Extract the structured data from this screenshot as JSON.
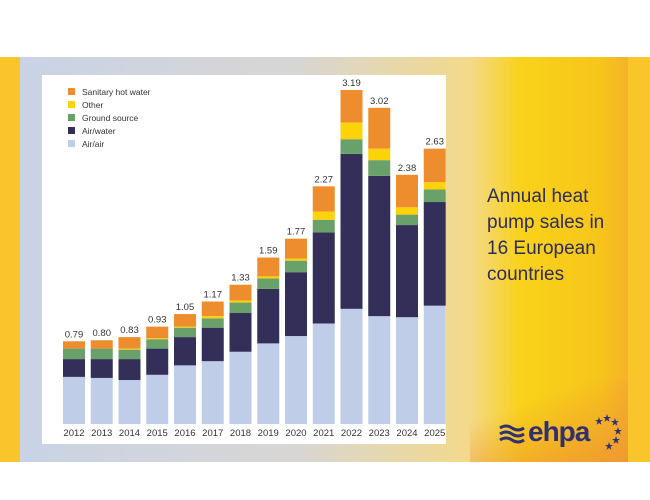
{
  "side_title": "Annual heat pump sales in 16 European countries",
  "logo_text": "ehpa",
  "chart_data": {
    "type": "bar",
    "stacked": true,
    "categories": [
      "2012",
      "2013",
      "2014",
      "2015",
      "2016",
      "2017",
      "2018",
      "2019",
      "2020",
      "2021",
      "2022",
      "2023",
      "2024",
      "2025"
    ],
    "totals": [
      "0.79",
      "0.80",
      "0.83",
      "0.93",
      "1.05",
      "1.17",
      "1.33",
      "1.59",
      "1.77",
      "2.27",
      "3.19",
      "3.02",
      "2.38",
      "2.63"
    ],
    "series": [
      {
        "name": "Air/air",
        "color": "#bfcde8",
        "values": [
          0.45,
          0.44,
          0.42,
          0.47,
          0.56,
          0.6,
          0.69,
          0.77,
          0.84,
          0.96,
          1.1,
          1.03,
          1.02,
          1.13
        ]
      },
      {
        "name": "Air/water",
        "color": "#332f58",
        "values": [
          0.17,
          0.18,
          0.2,
          0.25,
          0.27,
          0.32,
          0.37,
          0.52,
          0.61,
          0.87,
          1.48,
          1.34,
          0.88,
          0.99
        ]
      },
      {
        "name": "Ground source",
        "color": "#6aa06a",
        "values": [
          0.1,
          0.1,
          0.09,
          0.09,
          0.09,
          0.09,
          0.1,
          0.1,
          0.11,
          0.12,
          0.14,
          0.15,
          0.1,
          0.12
        ]
      },
      {
        "name": "Other",
        "color": "#fcd20a",
        "values": [
          0.0,
          0.0,
          0.01,
          0.01,
          0.01,
          0.02,
          0.02,
          0.02,
          0.02,
          0.08,
          0.16,
          0.11,
          0.07,
          0.07
        ]
      },
      {
        "name": "Sanitary hot water",
        "color": "#ee8d2e",
        "values": [
          0.07,
          0.08,
          0.11,
          0.11,
          0.12,
          0.14,
          0.15,
          0.18,
          0.19,
          0.24,
          0.31,
          0.39,
          0.31,
          0.32
        ]
      }
    ],
    "legend_order": [
      "Sanitary hot water",
      "Other",
      "Ground source",
      "Air/water",
      "Air/air"
    ],
    "legend_placement": "top-left",
    "ylim": [
      0,
      3.3
    ],
    "grid": false,
    "y_axis_shown": false
  }
}
